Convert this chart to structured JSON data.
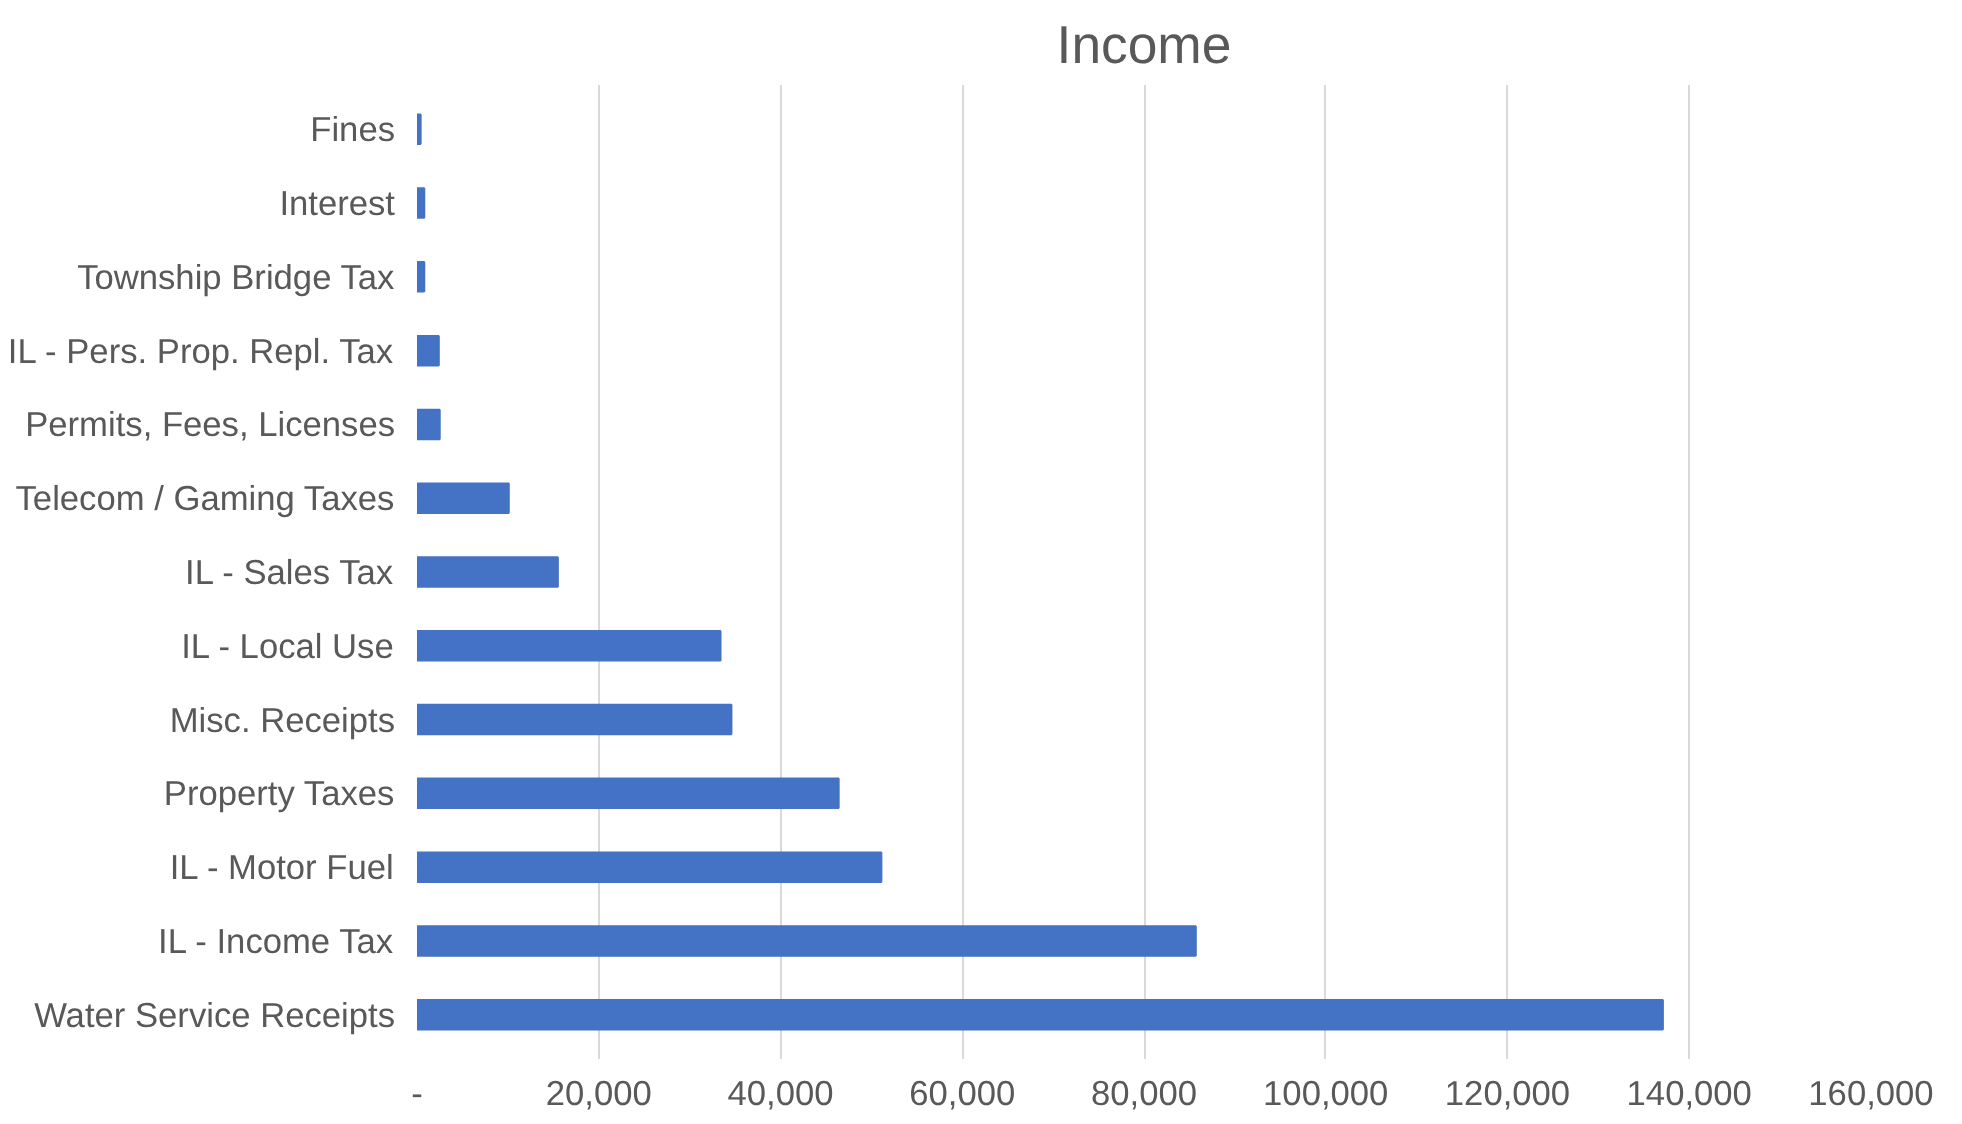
{
  "chart_data": {
    "type": "bar",
    "orientation": "horizontal",
    "title": "Income",
    "categories": [
      "Fines",
      "Interest",
      "Township Bridge Tax",
      "IL - Pers. Prop. Repl. Tax",
      "Permits, Fees, Licenses",
      "Telecom / Gaming Taxes",
      "IL - Sales Tax",
      "IL - Local Use",
      "Misc. Receipts",
      "Property Taxes",
      "IL - Motor Fuel",
      "IL - Income Tax",
      "Water Service Receipts"
    ],
    "values": [
      400,
      800,
      800,
      2400,
      2500,
      10100,
      15500,
      33400,
      34600,
      46400,
      51100,
      85700,
      137100
    ],
    "color": "#4472c4",
    "xlim": [
      0,
      160000
    ],
    "xticks": [
      {
        "value": 0,
        "label": "-"
      },
      {
        "value": 20000,
        "label": "20,000"
      },
      {
        "value": 40000,
        "label": "40,000"
      },
      {
        "value": 60000,
        "label": "60,000"
      },
      {
        "value": 80000,
        "label": "80,000"
      },
      {
        "value": 100000,
        "label": "100,000"
      },
      {
        "value": 120000,
        "label": "120,000"
      },
      {
        "value": 140000,
        "label": "140,000"
      },
      {
        "value": 160000,
        "label": "160,000"
      }
    ],
    "grid": "x"
  }
}
